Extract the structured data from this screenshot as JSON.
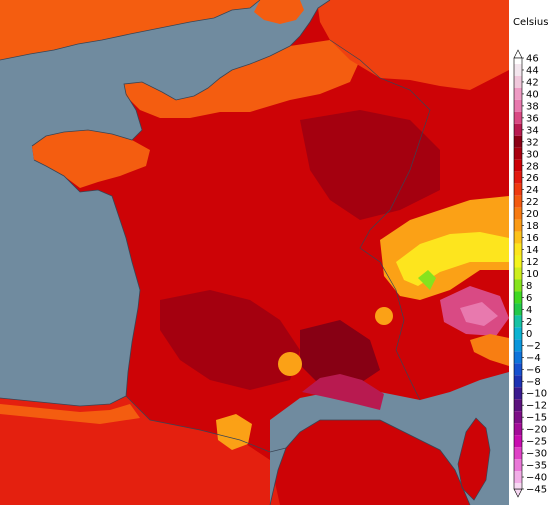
{
  "legend": {
    "unit": "Celsius",
    "labels": [
      "46",
      "44",
      "42",
      "40",
      "38",
      "36",
      "34",
      "32",
      "30",
      "28",
      "26",
      "24",
      "22",
      "20",
      "18",
      "16",
      "14",
      "12",
      "10",
      "8",
      "6",
      "4",
      "2",
      "0",
      "-2",
      "-4",
      "-6",
      "-8",
      "-10",
      "-12",
      "-15",
      "-20",
      "-25",
      "-30",
      "-35",
      "-40",
      "-45"
    ],
    "colors": [
      "#ffffff",
      "#f3e6ee",
      "#f0c8dc",
      "#ee9bc4",
      "#e879ae",
      "#d94a84",
      "#b81a50",
      "#8b0016",
      "#a80010",
      "#cc0005",
      "#e2190f",
      "#ef3a10",
      "#f35a10",
      "#f77a12",
      "#fb9b15",
      "#fdc21a",
      "#fde51e",
      "#f4f41e",
      "#cdee1e",
      "#86e41e",
      "#3fd823",
      "#22c84a",
      "#16c2a4",
      "#0bb3d2",
      "#0a96dc",
      "#0e74db",
      "#1650cf",
      "#1d32b3",
      "#3a1a8e",
      "#5b127d",
      "#7d0f87",
      "#a30c98",
      "#c90db0",
      "#df41c6",
      "#ea78d8",
      "#f2aee7",
      "#f7d8f2"
    ]
  },
  "map": {
    "fill_colors": {
      "sea": "#708b9f",
      "hot_30_32": "#a4000f",
      "hot_32_34": "#870014",
      "hot_28_30": "#cd0306",
      "hot_26_28": "#e4200f",
      "warm_24_26": "#ef4010",
      "warm_22_24": "#f45d10",
      "warm_20_22": "#f87e12",
      "mild_18_20": "#fba116",
      "cool_16_18": "#fdc41a",
      "cool_14_16": "#fbe31c",
      "cold_12_14": "#d5ec1d",
      "cold_10_12": "#86e31e",
      "peak_36": "#b81a50",
      "peak_38": "#d94a84",
      "peak_40": "#e879ae"
    }
  }
}
